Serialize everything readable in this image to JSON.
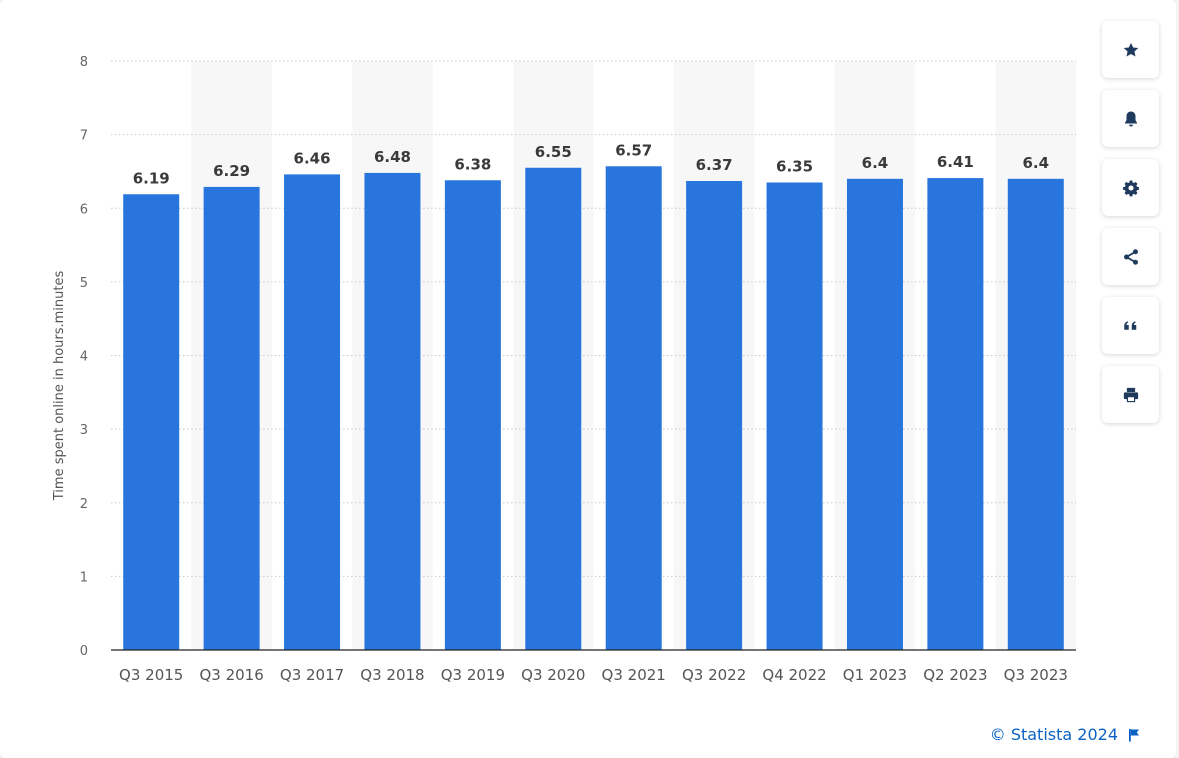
{
  "chart_data": {
    "type": "bar",
    "categories": [
      "Q3 2015",
      "Q3 2016",
      "Q3 2017",
      "Q3 2018",
      "Q3 2019",
      "Q3 2020",
      "Q3 2021",
      "Q3 2022",
      "Q4 2022",
      "Q1 2023",
      "Q2 2023",
      "Q3 2023"
    ],
    "values": [
      6.19,
      6.29,
      6.46,
      6.48,
      6.38,
      6.55,
      6.57,
      6.37,
      6.35,
      6.4,
      6.41,
      6.4
    ],
    "value_labels": [
      "6.19",
      "6.29",
      "6.46",
      "6.48",
      "6.38",
      "6.55",
      "6.57",
      "6.37",
      "6.35",
      "6.4",
      "6.41",
      "6.4"
    ],
    "ylabel": "Time spent online in hours.minutes",
    "xlabel": "",
    "ylim": [
      0,
      8
    ],
    "yticks": [
      "0",
      "1",
      "2",
      "3",
      "4",
      "5",
      "6",
      "7",
      "8"
    ],
    "grid": true,
    "bar_color": "#2876dd",
    "band_color": "#f7f7f7"
  },
  "sidebar": {
    "buttons": [
      {
        "icon": "star-icon",
        "name": "favorite-button"
      },
      {
        "icon": "bell-icon",
        "name": "notification-button"
      },
      {
        "icon": "gear-icon",
        "name": "settings-button"
      },
      {
        "icon": "share-icon",
        "name": "share-button"
      },
      {
        "icon": "quote-icon",
        "name": "cite-button"
      },
      {
        "icon": "print-icon",
        "name": "print-button"
      }
    ],
    "icon_color": "#1f3a5c"
  },
  "footer": {
    "credit": "© Statista 2024",
    "flag_icon": "flag-icon",
    "link_color": "#0b62c4"
  }
}
